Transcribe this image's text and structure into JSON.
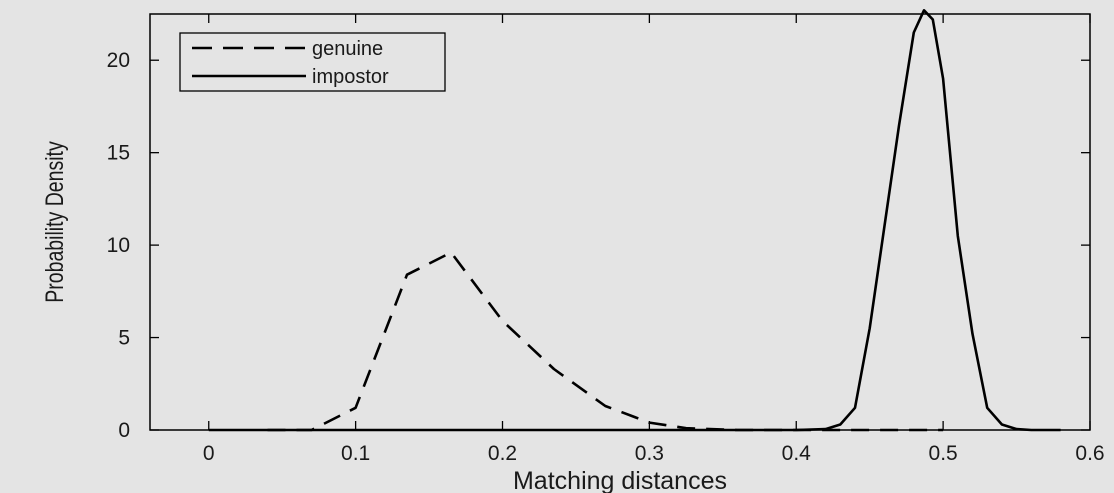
{
  "chart_data": {
    "type": "line",
    "title": "",
    "xlabel": "Matching distances",
    "ylabel": "Probability Density",
    "xlim": [
      -0.04,
      0.6
    ],
    "ylim": [
      0,
      22.5
    ],
    "xticks": [
      0,
      0.1,
      0.2,
      0.3,
      0.4,
      0.5,
      0.6
    ],
    "xtick_labels": [
      "0",
      "0.1",
      "0.2",
      "0.3",
      "0.4",
      "0.5",
      "0.6"
    ],
    "yticks": [
      0,
      5,
      10,
      15,
      20
    ],
    "ytick_labels": [
      "0",
      "5",
      "10",
      "15",
      "20"
    ],
    "grid": false,
    "legend_position": "top-left",
    "series": [
      {
        "name": "genuine",
        "style": "dashed",
        "color": "#000000",
        "x": [
          0.04,
          0.07,
          0.1,
          0.135,
          0.165,
          0.2,
          0.235,
          0.27,
          0.3,
          0.325,
          0.36,
          0.5
        ],
        "y": [
          0,
          0,
          1.2,
          8.4,
          9.6,
          5.9,
          3.3,
          1.3,
          0.4,
          0.1,
          0,
          0
        ]
      },
      {
        "name": "impostor",
        "style": "solid",
        "color": "#000000",
        "x": [
          0,
          0.1,
          0.2,
          0.3,
          0.4,
          0.42,
          0.43,
          0.44,
          0.45,
          0.46,
          0.47,
          0.48,
          0.487,
          0.493,
          0.5,
          0.51,
          0.52,
          0.53,
          0.54,
          0.55,
          0.56,
          0.58
        ],
        "y": [
          0,
          0,
          0,
          0,
          0,
          0.05,
          0.3,
          1.2,
          5.5,
          11.0,
          16.5,
          21.5,
          22.7,
          22.2,
          19.0,
          10.5,
          5.2,
          1.2,
          0.3,
          0.05,
          0,
          0
        ]
      }
    ]
  }
}
